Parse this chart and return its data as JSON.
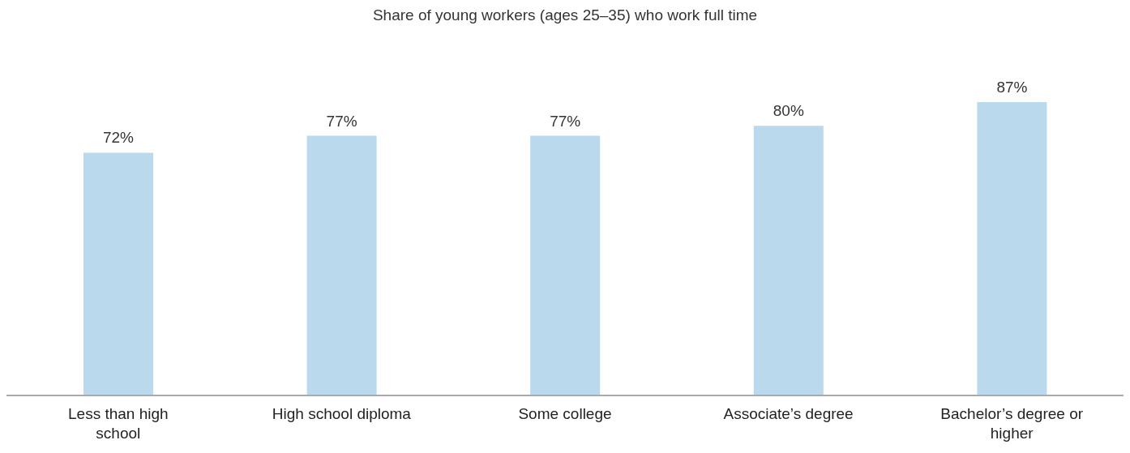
{
  "chart_data": {
    "type": "bar",
    "title": "Share of young workers (ages 25–35) who work full time",
    "categories": [
      "Less than high school",
      "High school diploma",
      "Some college",
      "Associate’s degree",
      "Bachelor’s degree or higher"
    ],
    "values": [
      72,
      77,
      77,
      80,
      87
    ],
    "value_labels": [
      "72%",
      "77%",
      "77%",
      "80%",
      "87%"
    ],
    "color": "#bad9ec",
    "tick_labels": "x"
  }
}
